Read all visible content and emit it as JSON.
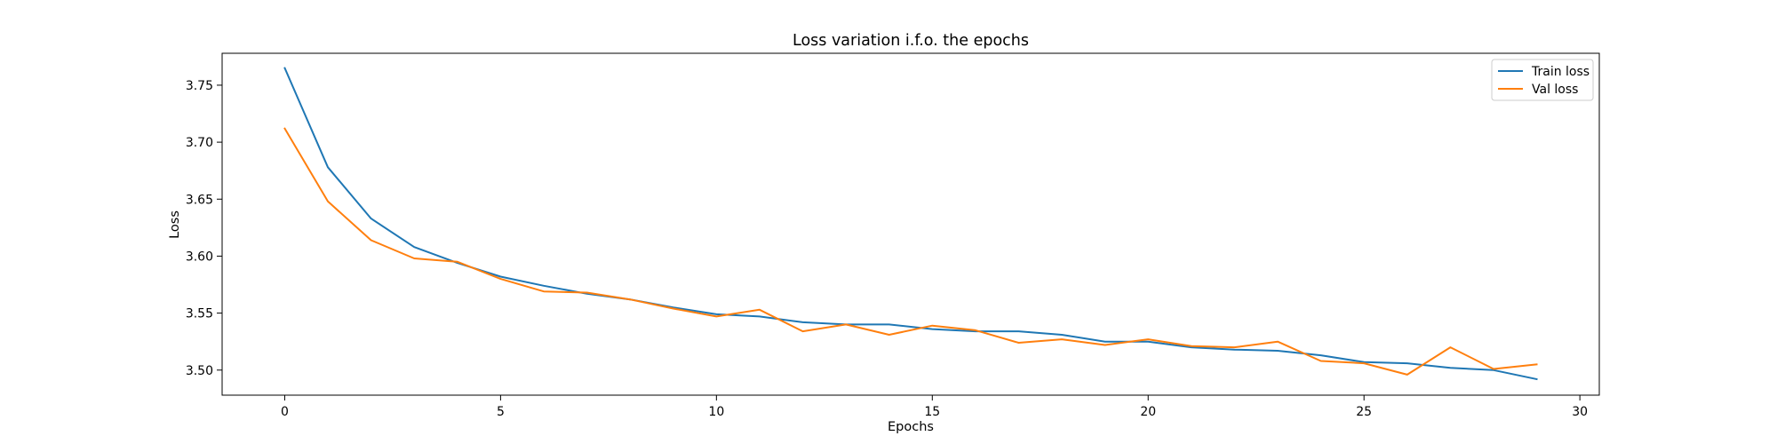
{
  "chart_data": {
    "type": "line",
    "title": "Loss variation i.f.o. the epochs",
    "xlabel": "Epochs",
    "ylabel": "Loss",
    "xlim": [
      -1.45,
      30.45
    ],
    "ylim": [
      3.478,
      3.778
    ],
    "xticks": [
      0,
      5,
      10,
      15,
      20,
      25,
      30
    ],
    "yticks": [
      3.5,
      3.55,
      3.6,
      3.65,
      3.7,
      3.75
    ],
    "ytick_labels": [
      "3.50",
      "3.55",
      "3.60",
      "3.65",
      "3.70",
      "3.75"
    ],
    "grid": false,
    "legend_position": "upper right",
    "x": [
      0,
      1,
      2,
      3,
      4,
      5,
      6,
      7,
      8,
      9,
      10,
      11,
      12,
      13,
      14,
      15,
      16,
      17,
      18,
      19,
      20,
      21,
      22,
      23,
      24,
      25,
      26,
      27,
      28,
      29
    ],
    "series": [
      {
        "name": "Train loss",
        "color": "#1f77b4",
        "values": [
          3.765,
          3.678,
          3.633,
          3.608,
          3.594,
          3.582,
          3.574,
          3.567,
          3.562,
          3.555,
          3.549,
          3.547,
          3.542,
          3.54,
          3.54,
          3.536,
          3.534,
          3.534,
          3.531,
          3.525,
          3.525,
          3.52,
          3.518,
          3.517,
          3.513,
          3.507,
          3.506,
          3.502,
          3.5,
          3.492
        ]
      },
      {
        "name": "Val loss",
        "color": "#ff7f0e",
        "values": [
          3.712,
          3.648,
          3.614,
          3.598,
          3.595,
          3.58,
          3.569,
          3.568,
          3.562,
          3.554,
          3.547,
          3.553,
          3.534,
          3.54,
          3.531,
          3.539,
          3.535,
          3.524,
          3.527,
          3.522,
          3.527,
          3.521,
          3.52,
          3.525,
          3.508,
          3.506,
          3.496,
          3.52,
          3.501,
          3.505
        ]
      }
    ]
  }
}
